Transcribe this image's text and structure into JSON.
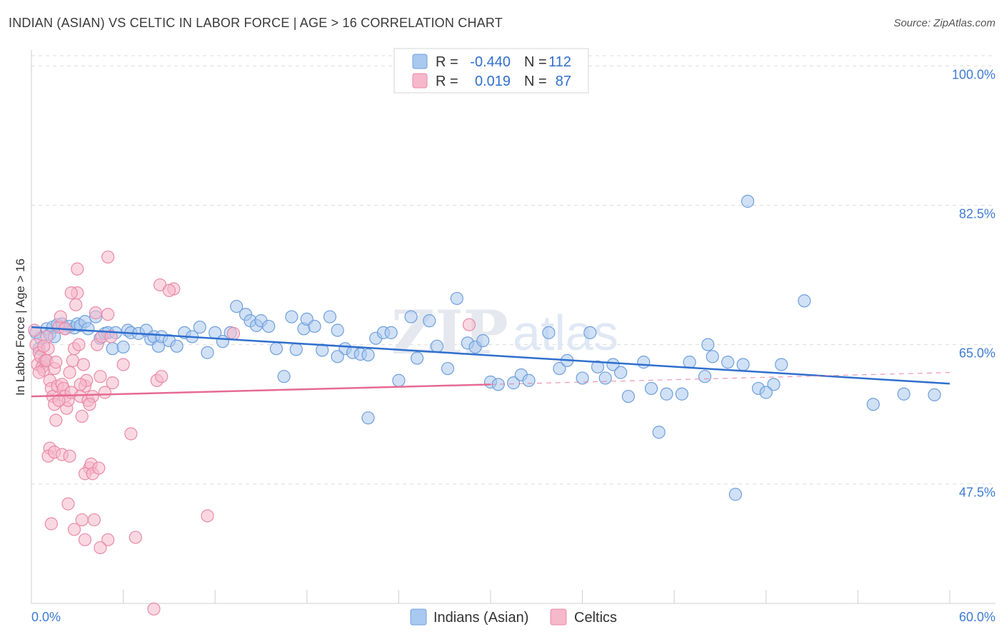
{
  "header": {
    "title": "INDIAN (ASIAN) VS CELTIC IN LABOR FORCE | AGE > 16 CORRELATION CHART",
    "source": "Source: ZipAtlas.com"
  },
  "stats_legend": {
    "row1": {
      "r_label": "R =",
      "r_value": "-0.440",
      "n_label": "N =",
      "n_value": "112"
    },
    "row2": {
      "r_label": "R =",
      "r_value": "0.019",
      "n_label": "N =",
      "n_value": "87"
    }
  },
  "bottom_legend": {
    "series1": "Indians (Asian)",
    "series2": "Celtics"
  },
  "watermark": {
    "zip": "ZIP",
    "atlas": "atlas"
  },
  "colors": {
    "blue_fill": "#a9c8ef",
    "blue_stroke": "#6f9fdc",
    "blue_line": "#2f6fce",
    "pink_fill": "#f6b8cb",
    "pink_stroke": "#e98aa8",
    "pink_line": "#e56b93",
    "grid": "#dcdcdc",
    "axis_text": "#3d7bd3"
  },
  "chart_data": {
    "type": "scatter",
    "title": "INDIAN (ASIAN) VS CELTIC IN LABOR FORCE | AGE > 16 CORRELATION CHART",
    "xlabel": "",
    "ylabel": "In Labor Force | Age > 16",
    "xlim": [
      0,
      60
    ],
    "ylim": [
      32.5,
      102
    ],
    "x_tick_labels": [
      "0.0%",
      "60.0%"
    ],
    "y_ticks": [
      47.5,
      65.0,
      82.5,
      100.0
    ],
    "y_tick_labels": [
      "47.5%",
      "65.0%",
      "82.5%",
      "100.0%"
    ],
    "series": [
      {
        "name": "Indians (Asian)",
        "r": -0.44,
        "n": 112,
        "trend": {
          "x": [
            0,
            60
          ],
          "y": [
            67.2,
            60.1
          ]
        },
        "points": [
          [
            0.3,
            66.5
          ],
          [
            0.5,
            64.5
          ],
          [
            0.6,
            65.8
          ],
          [
            0.8,
            62.8
          ],
          [
            1.0,
            67.0
          ],
          [
            1.2,
            66.3
          ],
          [
            1.4,
            67.2
          ],
          [
            1.5,
            66.0
          ],
          [
            1.7,
            67.5
          ],
          [
            2.0,
            67.6
          ],
          [
            2.2,
            67.0
          ],
          [
            2.5,
            67.3
          ],
          [
            2.8,
            67.1
          ],
          [
            3.0,
            67.6
          ],
          [
            3.2,
            67.4
          ],
          [
            3.5,
            67.9
          ],
          [
            3.7,
            67.0
          ],
          [
            4.2,
            68.5
          ],
          [
            4.5,
            65.8
          ],
          [
            4.8,
            66.4
          ],
          [
            5.0,
            66.5
          ],
          [
            5.3,
            64.5
          ],
          [
            5.5,
            66.5
          ],
          [
            6.0,
            64.7
          ],
          [
            6.3,
            66.8
          ],
          [
            6.5,
            66.5
          ],
          [
            7.0,
            66.4
          ],
          [
            7.5,
            66.8
          ],
          [
            7.8,
            65.7
          ],
          [
            8.0,
            66.0
          ],
          [
            8.3,
            64.8
          ],
          [
            8.5,
            66.0
          ],
          [
            9.0,
            65.5
          ],
          [
            9.5,
            64.8
          ],
          [
            10.0,
            66.5
          ],
          [
            10.5,
            66.0
          ],
          [
            11.0,
            67.2
          ],
          [
            11.5,
            64.0
          ],
          [
            12.0,
            66.5
          ],
          [
            12.5,
            65.4
          ],
          [
            13.0,
            66.5
          ],
          [
            13.4,
            69.8
          ],
          [
            14.0,
            68.8
          ],
          [
            14.3,
            68.0
          ],
          [
            14.7,
            67.4
          ],
          [
            15.0,
            68.0
          ],
          [
            15.5,
            67.3
          ],
          [
            16.0,
            64.5
          ],
          [
            16.5,
            61.0
          ],
          [
            17.0,
            68.5
          ],
          [
            17.3,
            64.4
          ],
          [
            17.8,
            67.0
          ],
          [
            18.0,
            68.2
          ],
          [
            18.5,
            67.3
          ],
          [
            19.0,
            64.3
          ],
          [
            19.5,
            68.5
          ],
          [
            20.0,
            66.8
          ],
          [
            20.5,
            64.5
          ],
          [
            21.0,
            64.0
          ],
          [
            21.5,
            63.8
          ],
          [
            22.0,
            63.7
          ],
          [
            22.5,
            65.8
          ],
          [
            23.0,
            66.5
          ],
          [
            23.5,
            66.5
          ],
          [
            24.0,
            60.5
          ],
          [
            24.8,
            68.5
          ],
          [
            25.2,
            63.3
          ],
          [
            26.0,
            68.0
          ],
          [
            26.5,
            64.8
          ],
          [
            27.2,
            62.0
          ],
          [
            27.8,
            70.8
          ],
          [
            28.5,
            65.2
          ],
          [
            29.0,
            64.7
          ],
          [
            29.5,
            65.5
          ],
          [
            30.0,
            60.3
          ],
          [
            30.5,
            60.0
          ],
          [
            31.5,
            60.2
          ],
          [
            32.0,
            61.2
          ],
          [
            32.5,
            60.5
          ],
          [
            33.8,
            66.5
          ],
          [
            34.5,
            62.0
          ],
          [
            35.0,
            63.0
          ],
          [
            36.0,
            60.8
          ],
          [
            36.5,
            66.5
          ],
          [
            37.0,
            62.2
          ],
          [
            38.0,
            62.5
          ],
          [
            38.5,
            61.5
          ],
          [
            39.0,
            58.5
          ],
          [
            40.0,
            62.8
          ],
          [
            40.5,
            59.5
          ],
          [
            41.5,
            58.8
          ],
          [
            42.5,
            58.8
          ],
          [
            43.0,
            62.8
          ],
          [
            44.0,
            61.0
          ],
          [
            44.5,
            63.5
          ],
          [
            45.5,
            62.8
          ],
          [
            46.5,
            62.5
          ],
          [
            47.5,
            59.5
          ],
          [
            48.5,
            60.0
          ],
          [
            49.0,
            62.5
          ],
          [
            50.5,
            70.5
          ],
          [
            55.0,
            57.5
          ],
          [
            57.0,
            58.8
          ],
          [
            59.0,
            58.7
          ],
          [
            41.0,
            54.0
          ],
          [
            46.0,
            46.2
          ],
          [
            46.8,
            83.0
          ],
          [
            22.0,
            55.8
          ],
          [
            37.5,
            60.8
          ],
          [
            48.0,
            59.0
          ],
          [
            44.2,
            65.0
          ],
          [
            20.0,
            63.5
          ]
        ]
      },
      {
        "name": "Celtics",
        "r": 0.019,
        "n": 87,
        "trend": {
          "x": [
            0,
            30
          ],
          "y": [
            58.5,
            60.0
          ]
        },
        "trend_extension": {
          "x": [
            30,
            60
          ],
          "y": [
            60.0,
            61.5
          ]
        },
        "points": [
          [
            0.2,
            66.8
          ],
          [
            0.3,
            65.0
          ],
          [
            0.4,
            62.5
          ],
          [
            0.5,
            64.0
          ],
          [
            0.6,
            63.5
          ],
          [
            0.7,
            62.2
          ],
          [
            0.8,
            61.8
          ],
          [
            0.9,
            63.0
          ],
          [
            1.0,
            66.0
          ],
          [
            1.1,
            64.5
          ],
          [
            1.2,
            60.5
          ],
          [
            1.3,
            59.5
          ],
          [
            1.4,
            58.5
          ],
          [
            1.5,
            57.5
          ],
          [
            1.6,
            55.5
          ],
          [
            1.7,
            59.8
          ],
          [
            1.8,
            67.2
          ],
          [
            1.9,
            68.5
          ],
          [
            2.0,
            60.0
          ],
          [
            2.1,
            59.5
          ],
          [
            2.2,
            58.5
          ],
          [
            2.3,
            57.0
          ],
          [
            2.4,
            58.0
          ],
          [
            2.5,
            61.5
          ],
          [
            2.6,
            59.0
          ],
          [
            2.7,
            63.0
          ],
          [
            2.8,
            64.5
          ],
          [
            2.9,
            70.0
          ],
          [
            3.0,
            71.5
          ],
          [
            3.1,
            65.0
          ],
          [
            3.2,
            58.5
          ],
          [
            3.3,
            56.0
          ],
          [
            3.4,
            62.5
          ],
          [
            3.5,
            59.8
          ],
          [
            3.6,
            60.5
          ],
          [
            3.7,
            58.0
          ],
          [
            3.8,
            49.5
          ],
          [
            3.9,
            50.0
          ],
          [
            4.0,
            58.5
          ],
          [
            4.2,
            69.0
          ],
          [
            4.3,
            65.0
          ],
          [
            4.5,
            61.0
          ],
          [
            4.6,
            66.0
          ],
          [
            4.8,
            59.0
          ],
          [
            5.0,
            68.8
          ],
          [
            5.2,
            66.0
          ],
          [
            5.3,
            60.2
          ],
          [
            1.2,
            52.0
          ],
          [
            1.1,
            51.0
          ],
          [
            1.5,
            51.5
          ],
          [
            2.0,
            51.2
          ],
          [
            2.5,
            51.0
          ],
          [
            1.3,
            42.5
          ],
          [
            2.4,
            45.0
          ],
          [
            3.3,
            43.0
          ],
          [
            4.1,
            43.0
          ],
          [
            5.0,
            40.5
          ],
          [
            6.8,
            40.8
          ],
          [
            2.8,
            41.8
          ],
          [
            3.5,
            40.5
          ],
          [
            4.5,
            39.5
          ],
          [
            6.5,
            53.8
          ],
          [
            8.2,
            60.5
          ],
          [
            8.5,
            61.0
          ],
          [
            8.4,
            72.5
          ],
          [
            9.3,
            72.0
          ],
          [
            9.0,
            71.8
          ],
          [
            8.0,
            31.8
          ],
          [
            11.5,
            43.5
          ],
          [
            3.5,
            48.8
          ],
          [
            4.0,
            48.8
          ],
          [
            4.4,
            49.5
          ],
          [
            1.0,
            63.0
          ],
          [
            1.5,
            62.0
          ],
          [
            2.2,
            67.0
          ],
          [
            0.5,
            61.5
          ],
          [
            3.2,
            60.0
          ],
          [
            3.8,
            57.5
          ],
          [
            6.0,
            62.5
          ],
          [
            1.8,
            58.0
          ],
          [
            2.6,
            71.5
          ],
          [
            3.0,
            74.5
          ],
          [
            5.0,
            76.0
          ],
          [
            28.6,
            67.5
          ],
          [
            13.2,
            66.4
          ],
          [
            0.8,
            64.8
          ],
          [
            1.6,
            62.8
          ]
        ]
      }
    ]
  }
}
